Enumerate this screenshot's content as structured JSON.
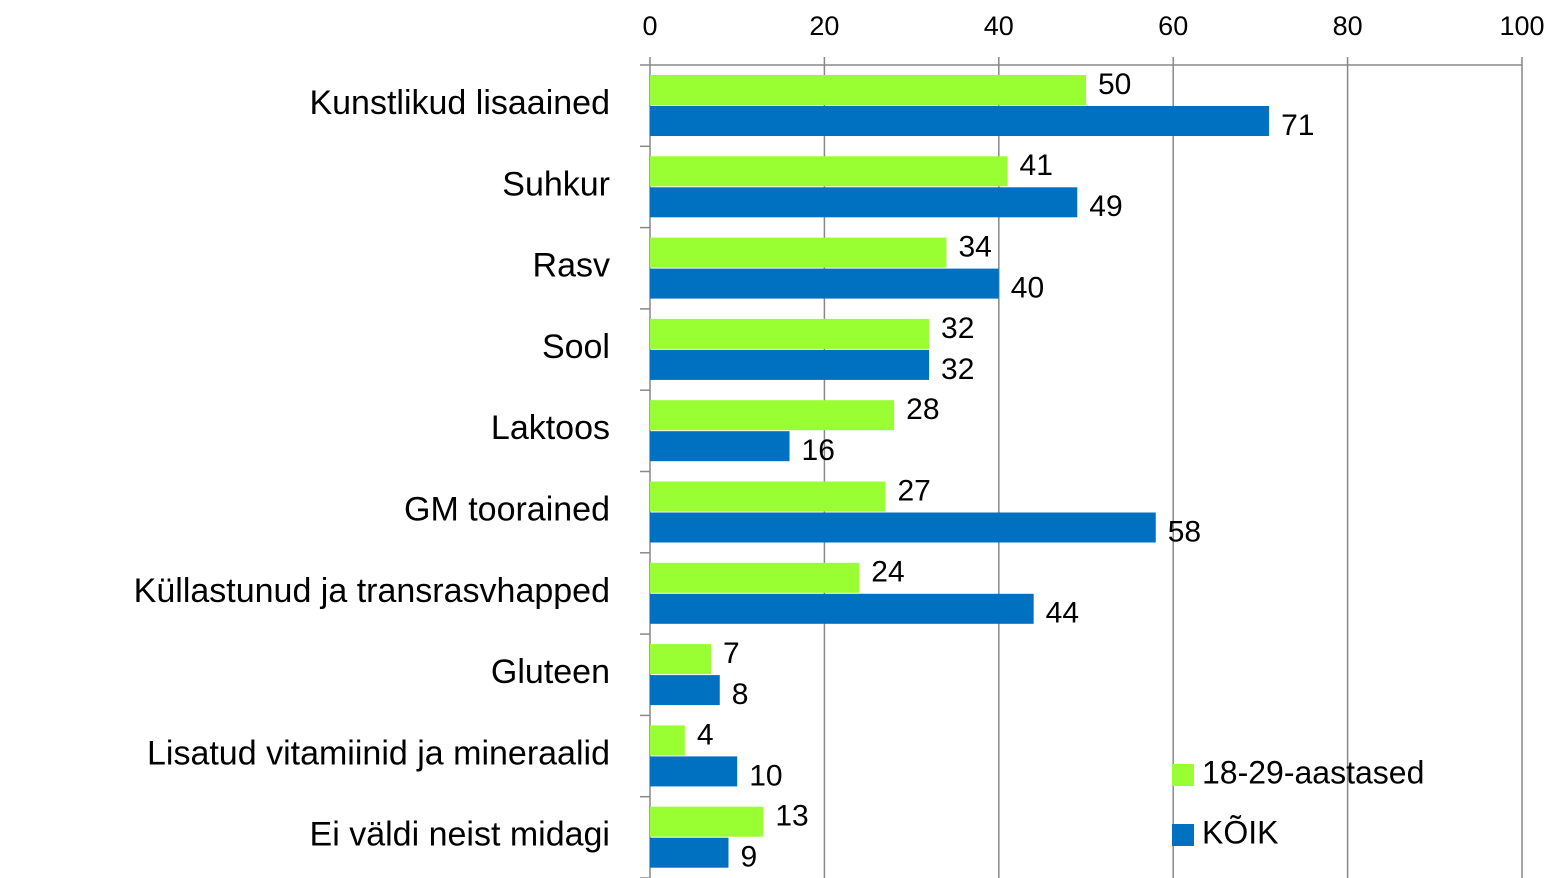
{
  "chart_data": {
    "type": "hbar",
    "categories": [
      "Kunstlikud lisaained",
      "Suhkur",
      "Rasv",
      "Sool",
      "Laktoos",
      "GM toorained",
      "Küllastunud ja transrasvhapped",
      "Gluteen",
      "Lisatud vitamiinid ja mineraalid",
      "Ei väldi neist midagi"
    ],
    "series": [
      {
        "name": "18-29-aastased",
        "color": "#99ff33",
        "values": [
          50,
          41,
          34,
          32,
          28,
          27,
          24,
          7,
          4,
          13
        ]
      },
      {
        "name": "KÕIK",
        "color": "#0070c0",
        "values": [
          71,
          49,
          40,
          32,
          16,
          58,
          44,
          8,
          10,
          9
        ]
      }
    ],
    "xlim": [
      0,
      100
    ],
    "xticks": [
      0,
      20,
      40,
      60,
      80,
      100
    ],
    "grid": true,
    "legend": "bottom-right"
  }
}
